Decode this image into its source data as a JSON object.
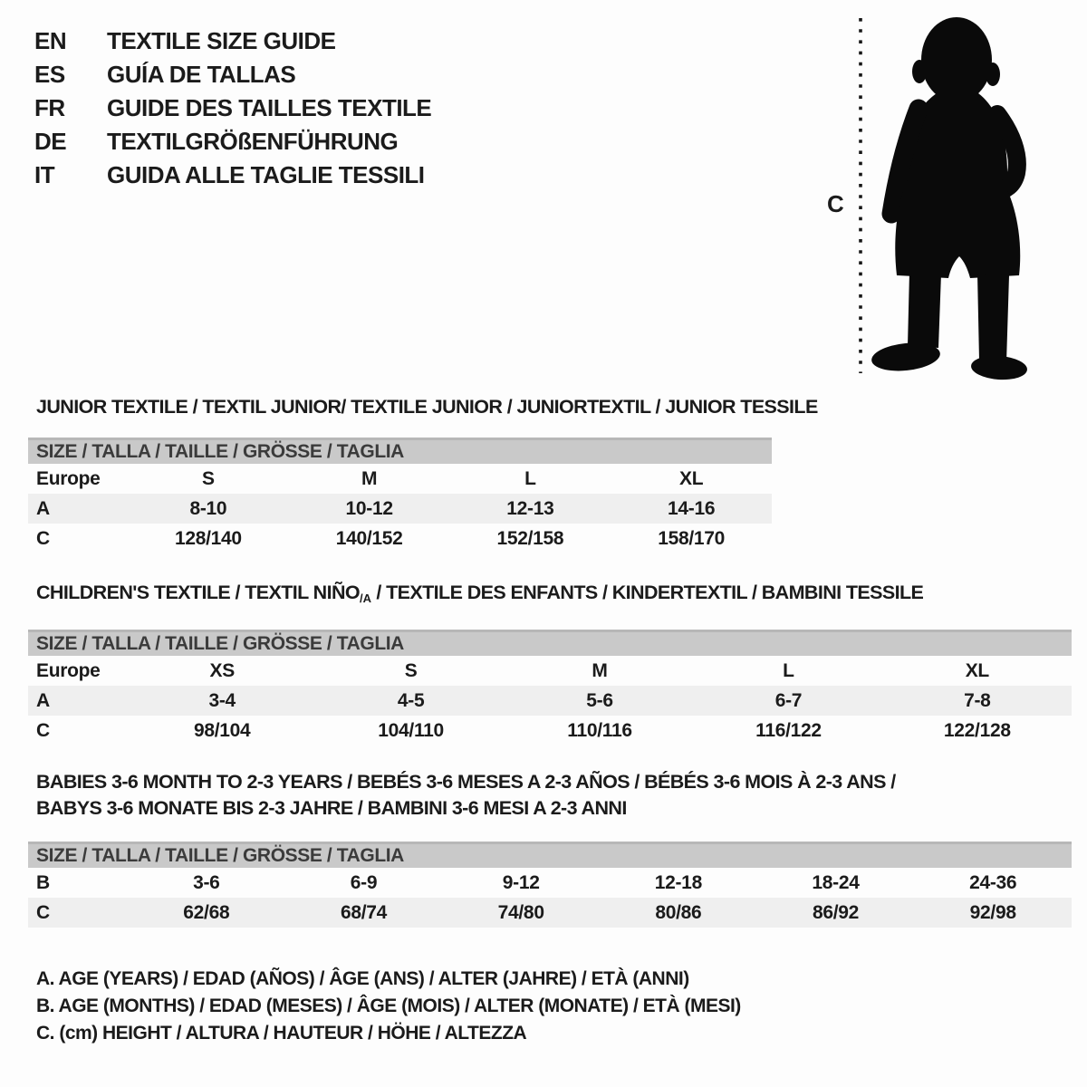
{
  "colors": {
    "background": "#fdfdfd",
    "text": "#1b1b1b",
    "size_bar_background": "#c9c9c9",
    "size_bar_border_top": "#b7b7b7",
    "size_bar_text": "#3b3b3b",
    "shaded_row_background": "#efefef",
    "silhouette": "#0a0a0a"
  },
  "languages": [
    {
      "code": "EN",
      "title": "TEXTILE SIZE GUIDE"
    },
    {
      "code": "ES",
      "title": "GUÍA DE TALLAS"
    },
    {
      "code": "FR",
      "title": "GUIDE DES TAILLES TEXTILE"
    },
    {
      "code": "DE",
      "title": "TEXTILGRÖßENFÜHRUNG"
    },
    {
      "code": "IT",
      "title": "GUIDA ALLE TAGLIE TESSILI"
    }
  ],
  "figure": {
    "height_label": "C",
    "icon": "toddler-silhouette"
  },
  "sections": [
    {
      "id": "junior-textile",
      "heading_lines": [
        [
          {
            "text": "JUNIOR TEXTILE / TEXTIL JUNIOR/ TEXTILE JUNIOR / JUNIORTEXTIL / JUNIOR TESSILE",
            "sub": false
          }
        ]
      ],
      "size_header": "SIZE / TALLA / TAILLE / GRÖSSE / TAGLIA",
      "rows": [
        {
          "label": "Europe",
          "shaded": false,
          "values": [
            "S",
            "M",
            "L",
            "XL"
          ]
        },
        {
          "label": "A",
          "shaded": true,
          "values": [
            "8-10",
            "10-12",
            "12-13",
            "14-16"
          ]
        },
        {
          "label": "C",
          "shaded": false,
          "values": [
            "128/140",
            "140/152",
            "152/158",
            "158/170"
          ]
        }
      ]
    },
    {
      "id": "childrens-textile",
      "heading_lines": [
        [
          {
            "text": "CHILDREN'S TEXTILE / TEXTIL NIÑO",
            "sub": false
          },
          {
            "text": "/A",
            "sub": true
          },
          {
            "text": " / TEXTILE DES ENFANTS / KINDERTEXTIL / BAMBINI TESSILE",
            "sub": false
          }
        ]
      ],
      "size_header": "SIZE / TALLA / TAILLE / GRÖSSE / TAGLIA",
      "rows": [
        {
          "label": "Europe",
          "shaded": false,
          "values": [
            "XS",
            "S",
            "M",
            "L",
            "XL"
          ]
        },
        {
          "label": "A",
          "shaded": true,
          "values": [
            "3-4",
            "4-5",
            "5-6",
            "6-7",
            "7-8"
          ]
        },
        {
          "label": "C",
          "shaded": false,
          "values": [
            "98/104",
            "104/110",
            "110/116",
            "116/122",
            "122/128"
          ]
        }
      ]
    },
    {
      "id": "babies-textile",
      "heading_lines": [
        [
          {
            "text": "BABIES 3-6 MONTH TO 2-3 YEARS / BEBÉS 3-6 MESES A 2-3 AÑOS / BÉBÉS 3-6 MOIS À 2-3 ANS /",
            "sub": false
          }
        ],
        [
          {
            "text": "BABYS 3-6 MONATE BIS 2-3 JAHRE / BAMBINI 3-6 MESI A 2-3 ANNI",
            "sub": false
          }
        ]
      ],
      "size_header": "SIZE / TALLA / TAILLE / GRÖSSE / TAGLIA",
      "rows": [
        {
          "label": "B",
          "shaded": false,
          "values": [
            "3-6",
            "6-9",
            "9-12",
            "12-18",
            "18-24",
            "24-36"
          ]
        },
        {
          "label": "C",
          "shaded": true,
          "values": [
            "62/68",
            "68/74",
            "74/80",
            "80/86",
            "86/92",
            "92/98"
          ]
        }
      ]
    }
  ],
  "legend": [
    "A. AGE (YEARS) / EDAD (AÑOS) / ÂGE (ANS) / ALTER (JAHRE) / ETÀ (ANNI)",
    "B. AGE (MONTHS) / EDAD (MESES) / ÂGE (MOIS) / ALTER (MONATE) / ETÀ (MESI)",
    "C. (cm) HEIGHT / ALTURA / HAUTEUR / HÖHE / ALTEZZA"
  ]
}
